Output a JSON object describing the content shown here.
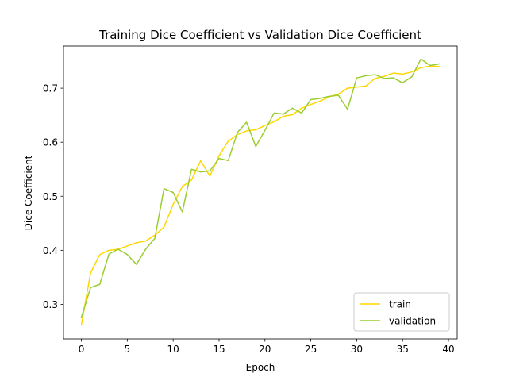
{
  "chart_data": {
    "type": "line",
    "title": "Training Dice Coefficient vs Validation Dice Coefficient",
    "xlabel": "Epoch",
    "ylabel": "Dice Coefficient",
    "xlim": [
      -1.95,
      40.95
    ],
    "ylim": [
      0.236,
      0.778
    ],
    "xticks": [
      0,
      5,
      10,
      15,
      20,
      25,
      30,
      35,
      40
    ],
    "yticks": [
      0.3,
      0.4,
      0.5,
      0.6,
      0.7
    ],
    "grid": false,
    "legend_position": "lower right",
    "x": [
      0,
      1,
      2,
      3,
      4,
      5,
      6,
      7,
      8,
      9,
      10,
      11,
      12,
      13,
      14,
      15,
      16,
      17,
      18,
      19,
      20,
      21,
      22,
      23,
      24,
      25,
      26,
      27,
      28,
      29,
      30,
      31,
      32,
      33,
      34,
      35,
      36,
      37,
      38,
      39
    ],
    "series": [
      {
        "name": "train",
        "color": "#ffd700",
        "values": [
          0.262,
          0.358,
          0.392,
          0.4,
          0.402,
          0.408,
          0.414,
          0.417,
          0.428,
          0.443,
          0.485,
          0.518,
          0.53,
          0.566,
          0.537,
          0.575,
          0.602,
          0.614,
          0.621,
          0.623,
          0.631,
          0.638,
          0.648,
          0.651,
          0.663,
          0.67,
          0.676,
          0.684,
          0.689,
          0.7,
          0.702,
          0.704,
          0.718,
          0.722,
          0.728,
          0.726,
          0.73,
          0.738,
          0.741,
          0.74
        ]
      },
      {
        "name": "validation",
        "color": "#9acd32",
        "values": [
          0.276,
          0.331,
          0.337,
          0.393,
          0.402,
          0.392,
          0.374,
          0.402,
          0.422,
          0.514,
          0.507,
          0.471,
          0.55,
          0.545,
          0.547,
          0.57,
          0.566,
          0.618,
          0.637,
          0.592,
          0.622,
          0.654,
          0.652,
          0.663,
          0.654,
          0.679,
          0.681,
          0.685,
          0.687,
          0.661,
          0.719,
          0.723,
          0.725,
          0.718,
          0.719,
          0.71,
          0.721,
          0.754,
          0.742,
          0.745
        ]
      }
    ]
  }
}
